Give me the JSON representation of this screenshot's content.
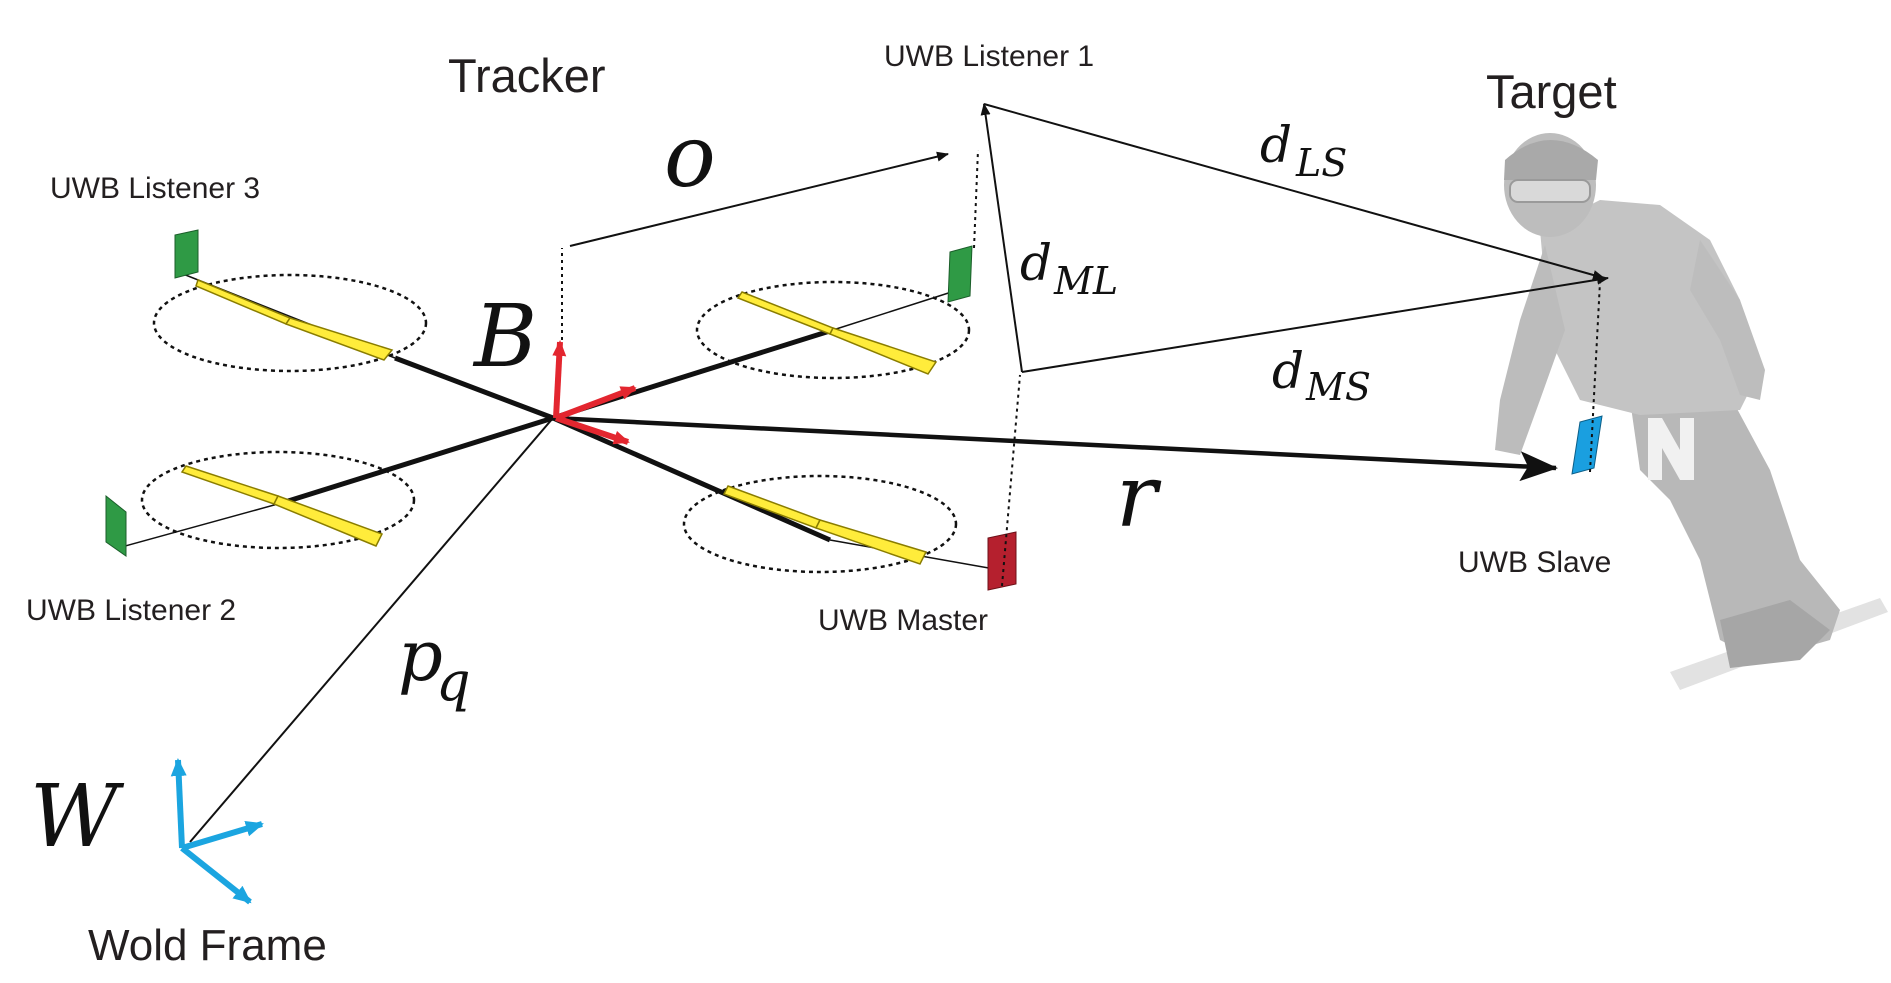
{
  "labels": {
    "tracker": "Tracker",
    "target": "Target",
    "uwb_listener_1": "UWB Listener 1",
    "uwb_listener_2": "UWB Listener 2",
    "uwb_listener_3": "UWB Listener 3",
    "uwb_master": "UWB Master",
    "uwb_slave": "UWB Slave",
    "world_frame": "Wold Frame"
  },
  "symbols": {
    "o": "o",
    "B": "B",
    "W": "W",
    "r": "r",
    "p": "p",
    "p_sub": "q",
    "d_ls": "d",
    "d_ls_sub": "LS",
    "d_ml": "d",
    "d_ml_sub": "ML",
    "d_ms": "d",
    "d_ms_sub": "MS"
  },
  "colors": {
    "body_frame": "#e3262f",
    "world_frame": "#1ba5e0",
    "listener_node": "#2f9a45",
    "master_node": "#b5202e",
    "slave_node": "#1a9fe0",
    "propeller_blade": "#ffec3b",
    "line": "#111111",
    "person_silhouette": "#c8c8c8"
  },
  "icons": {
    "target_person": "snowboarder-silhouette",
    "tracker_vehicle": "quadrotor-drone"
  }
}
